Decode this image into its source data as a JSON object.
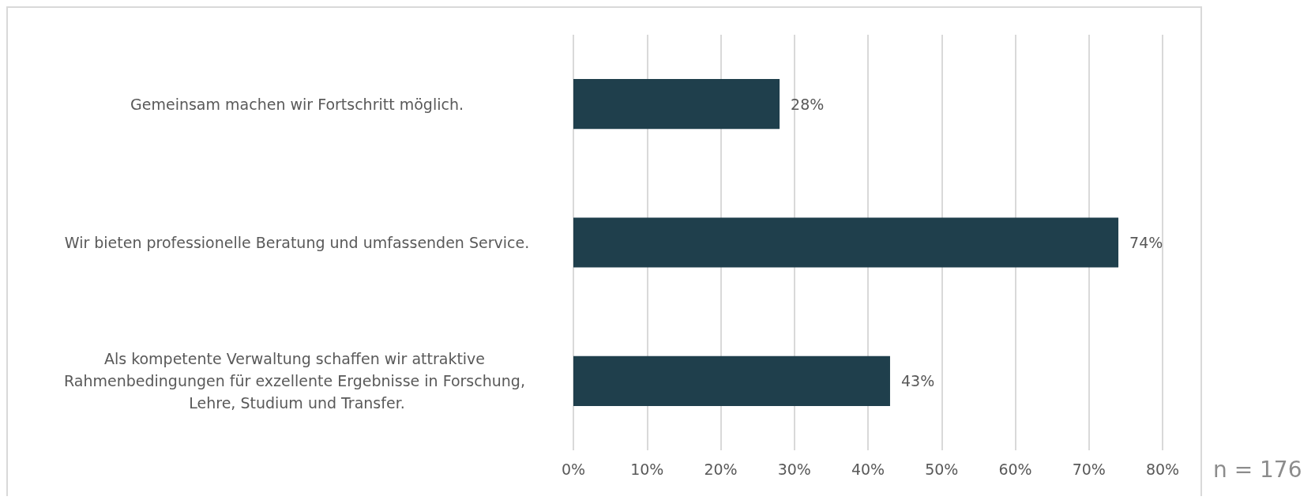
{
  "chart_data": {
    "type": "bar",
    "orientation": "horizontal",
    "categories": [
      "Gemeinsam machen wir Fortschritt möglich.",
      "Wir bieten professionelle Beratung und umfassenden Service.",
      "Als kompetente Verwaltung schaffen wir attraktive Rahmenbedingungen für exzellente Ergebnisse in Forschung, Lehre, Studium und Transfer."
    ],
    "values": [
      28,
      74,
      43
    ],
    "value_labels": [
      "28%",
      "74%",
      "43%"
    ],
    "color": "#1f3f4c",
    "xlim": [
      0,
      80
    ],
    "xticks": [
      {
        "value": 0,
        "label": "0%"
      },
      {
        "value": 10,
        "label": "10%"
      },
      {
        "value": 20,
        "label": "20%"
      },
      {
        "value": 30,
        "label": "30%"
      },
      {
        "value": 40,
        "label": "40%"
      },
      {
        "value": 50,
        "label": "50%"
      },
      {
        "value": 60,
        "label": "60%"
      },
      {
        "value": 70,
        "label": "70%"
      },
      {
        "value": 80,
        "label": "80%"
      }
    ],
    "grid": "x",
    "annotations": [
      "n = 176"
    ]
  }
}
